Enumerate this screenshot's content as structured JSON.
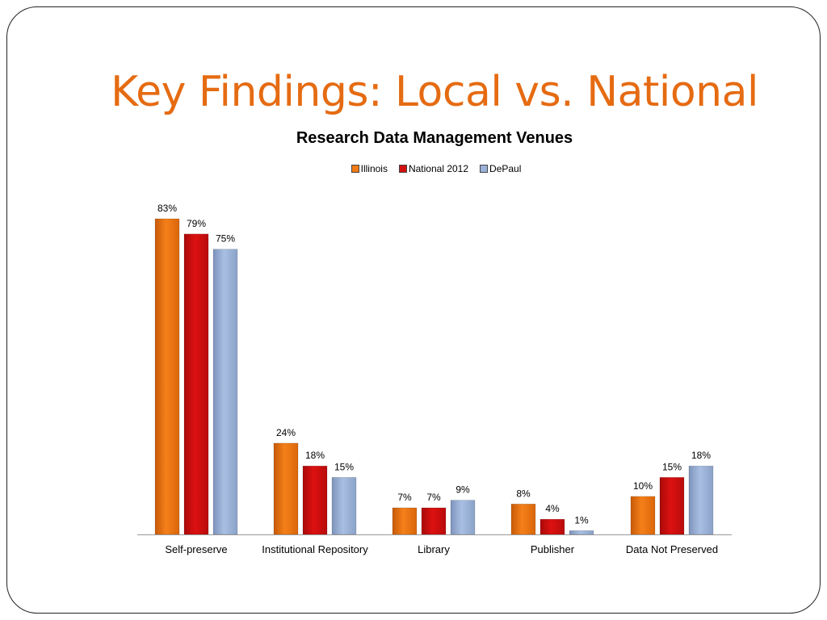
{
  "slide": {
    "title": "Key Findings: Local vs. National"
  },
  "chart_data": {
    "type": "bar",
    "title": "Research Data Management Venues",
    "categories": [
      "Self-preserve",
      "Institutional Repository",
      "Library",
      "Publisher",
      "Data Not Preserved"
    ],
    "series": [
      {
        "name": "Illinois",
        "values": [
          83,
          24,
          7,
          8,
          10
        ],
        "labels": [
          "83%",
          "24%",
          "7%",
          "8%",
          "10%"
        ],
        "color": "#f07a14"
      },
      {
        "name": "National 2012",
        "values": [
          79,
          18,
          7,
          4,
          15
        ],
        "labels": [
          "79%",
          "18%",
          "7%",
          "4%",
          "15%"
        ],
        "color": "#d40f0f"
      },
      {
        "name": "DePaul",
        "values": [
          75,
          15,
          9,
          1,
          18
        ],
        "labels": [
          "75%",
          "15%",
          "9%",
          "1%",
          "18%"
        ],
        "color": "#9ab1d8"
      }
    ],
    "ylim": [
      0,
      85
    ],
    "legend_position": "top-center",
    "grid": false
  }
}
